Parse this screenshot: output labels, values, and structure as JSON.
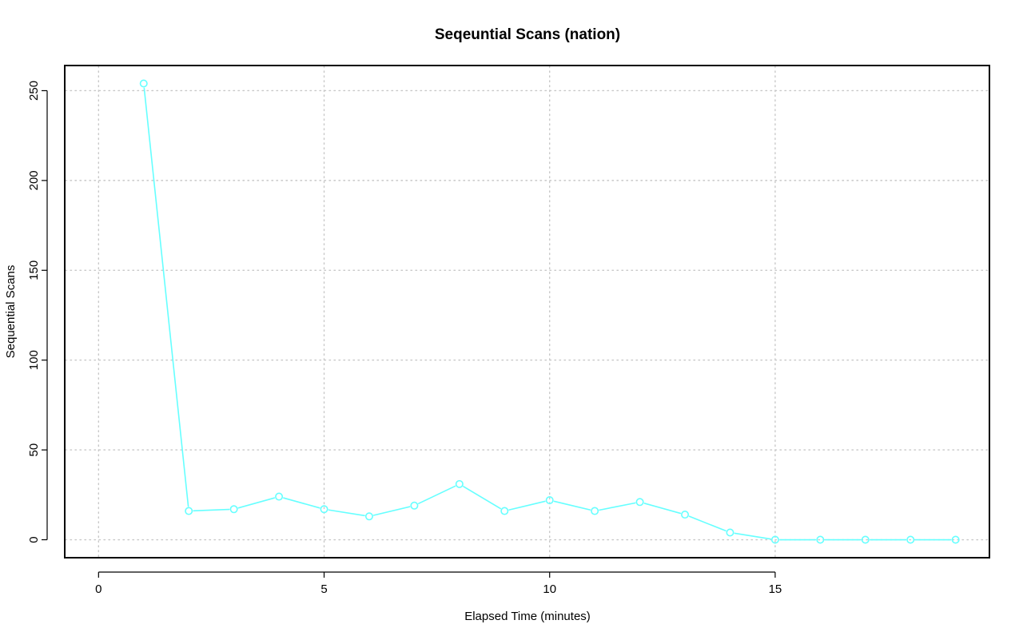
{
  "chart_data": {
    "type": "line",
    "title": "Seqeuntial Scans (nation)",
    "xlabel": "Elapsed Time (minutes)",
    "ylabel": "Sequential Scans",
    "xlim": [
      -0.75,
      19.75
    ],
    "ylim": [
      -10,
      264
    ],
    "x_ticks": [
      0,
      5,
      10,
      15
    ],
    "y_ticks": [
      0,
      50,
      100,
      150,
      200,
      250
    ],
    "grid": true,
    "series": [
      {
        "color": "#66ffff",
        "marker": "open-circle",
        "x": [
          1,
          2,
          3,
          4,
          5,
          6,
          7,
          8,
          9,
          10,
          11,
          12,
          13,
          14,
          15,
          16,
          17,
          18,
          19
        ],
        "y": [
          254,
          16,
          17,
          24,
          17,
          13,
          19,
          31,
          16,
          22,
          16,
          21,
          14,
          4,
          0,
          0,
          0,
          0,
          0
        ]
      }
    ]
  }
}
